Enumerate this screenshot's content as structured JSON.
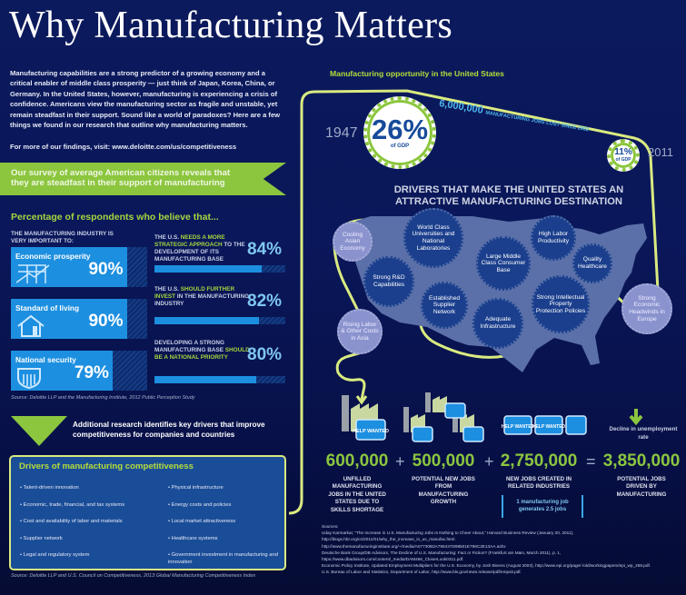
{
  "title": "Why Manufacturing Matters",
  "intro": "Manufacturing capabilities are a strong predictor of a growing economy and a critical enabler of middle class prosperity — just think of Japan, Korea, China, or Germany. In the United States, however, manufacturing is experiencing a crisis of confidence. Americans view the manufacturing sector as fragile and unstable, yet remain steadfast in their support. Sound like a world of paradoxes? Here are a few things we found in our research that outline why manufacturing matters.",
  "more_findings": "For more of our findings, visit: www.deloitte.com/us/competitiveness",
  "survey_banner": "Our survey of average American citizens reveals that they are steadfast in their support of manufacturing",
  "percentage_heading": "Percentage of respondents who believe that...",
  "industry_label": "THE MANUFACTURING INDUSTRY IS VERY IMPORTANT TO:",
  "left_rows": [
    {
      "label": "Economic prosperity",
      "value": "90%",
      "percent": 90,
      "icon": "growth-chart-icon"
    },
    {
      "label": "Standard of living",
      "value": "90%",
      "percent": 90,
      "icon": "house-icon"
    },
    {
      "label": "National security",
      "value": "79%",
      "percent": 79,
      "icon": "shield-icon"
    }
  ],
  "right_rows": [
    {
      "pre": "THE U.S. ",
      "hl": "NEEDS A MORE STRATEGIC APPROACH",
      "post": " TO THE DEVELOPMENT OF ITS MANUFACTURING BASE",
      "value": "84%",
      "percent": 84
    },
    {
      "pre": "THE U.S. ",
      "hl": "SHOULD FURTHER INVEST",
      "post": " IN THE MANUFACTURING INDUSTRY",
      "value": "82%",
      "percent": 82
    },
    {
      "pre": "DEVELOPING A STRONG MANUFACTURING BASE ",
      "hl": "SHOULD BE A NATIONAL PRIORITY",
      "post": "",
      "value": "80%",
      "percent": 80
    }
  ],
  "survey_source": "Source: Deloitte LLP and the Manufacturing Institute, 2012 Public Perception Study",
  "additional": "Additional research identifies key drivers that improve competitiveness for companies and countries",
  "drivers_box": {
    "title": "Drivers of manufacturing competitiveness",
    "col1": [
      "• Talent-driven innovation",
      "• Economic, trade, financial, and tax systems",
      "• Cost and availability of labor and materials",
      "• Supplier network",
      "• Legal and regulatory system"
    ],
    "col2": [
      "• Physical infrastructure",
      "• Energy costs and policies",
      "• Local market attractiveness",
      "• Healthcare systems",
      "• Government investment in manufacturing and innovation"
    ]
  },
  "drivers_source": "Source: Deloitte LLP and U.S. Council on Competitiveness, 2013 Global Manufacturing Competitiveness Index",
  "opportunity_heading": "Manufacturing opportunity in the United States",
  "gdp_1947": {
    "year": "1947",
    "value": "26%",
    "unit": "of GDP"
  },
  "gdp_2011": {
    "year": "2011",
    "value": "11%",
    "unit": "of GDP"
  },
  "jobs_lost": {
    "number": "6,000,000",
    "text": "MANUFACTURING JOBS LOST SINCE 2002"
  },
  "map_title": "DRIVERS THAT MAKE THE UNITED STATES AN ATTRACTIVE MANUFACTURING DESTINATION",
  "bubbles": [
    "Cooling Asian Economy",
    "World Class Universities and National Laboratories",
    "Large Middle Class Consumer Base",
    "High Labor Productivity",
    "Quality Healthcare",
    "Strong R&D Capabilities",
    "Established Supplier Network",
    "Adequate Infrastructure",
    "Strong Intellectual Property Protection Policies",
    "Strong Economic Headwinds in Europe",
    "Rising Labor & Other Costs in Asia"
  ],
  "help_wanted": "HELP WANTED",
  "equation": [
    {
      "number": "600,000",
      "label": "UNFILLED MANUFACTURING JOBS IN THE UNITED STATES DUE TO SKILLS SHORTAGE"
    },
    {
      "number": "500,000",
      "label": "POTENTIAL NEW JOBS FROM MANUFACTURING GROWTH"
    },
    {
      "number": "2,750,000",
      "label": "NEW JOBS CREATED IN RELATED INDUSTRIES"
    },
    {
      "number": "3,850,000",
      "label": "POTENTIAL JOBS DRIVEN BY MANUFACTURING"
    }
  ],
  "operators": [
    "+",
    "+",
    "="
  ],
  "multiplier_note": "1 manufacturing job generates 2.5 jobs",
  "decline_label": "Decline in unemployment rate",
  "sources_heading": "Sources:",
  "sources": [
    "Uday Karmarkar, “The Increase in U.S. Manufacturing Jobs Is Nothing to Cheer About,” Harvard Business Review (January 20, 2011), http://blogs.hbr.org/cs/2011/01/why_the_increase_in_us_manufac.html.",
    "http://www.themanufacturinginstitute.org/~/media/A07730B2A798437D98501E798C2E13AA.ashx",
    "Deutsche Bank Group/DB Advisors, The Decline of U.S. Manufacturing: Fact or Fiction? (Frankfurt am Main, March 2011), p. 1, https://www.dbadvisors.com/content/_media/DAM466_CloserLook0311.pdf.",
    "Economic Policy Institute, Updated Employment Multipliers for the U.S. Economy, by Josh Bivens (August 2003), http://www.epi.org/page/-/old/workingpapers/epi_wp_268.pdf.",
    "U.S. Bureau of Labor and Statistics, Department of Labor, http://www.bls.gov/news.release/pdf/empsit.pdf."
  ],
  "colors": {
    "navy": "#0a175a",
    "green": "#8cc63f",
    "lime_line": "#d9ea80",
    "bar_blue": "#1d8fe0",
    "map": "#5b6fa8",
    "bubble_dark": "#1b3f8d",
    "bubble_light": "#8b93ce"
  }
}
